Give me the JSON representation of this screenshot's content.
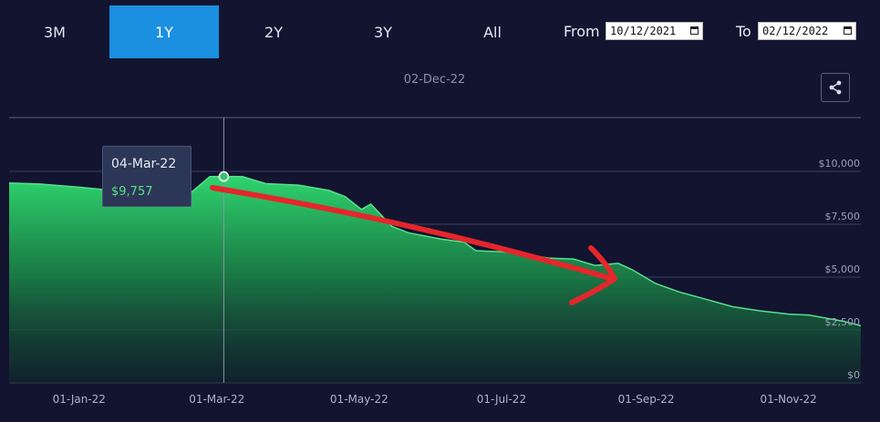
{
  "tabs": [
    {
      "label": "3M",
      "active": false
    },
    {
      "label": "1Y",
      "active": true
    },
    {
      "label": "2Y",
      "active": false
    },
    {
      "label": "3Y",
      "active": false
    },
    {
      "label": "All",
      "active": false
    }
  ],
  "date_range": {
    "from_label": "From",
    "from_value": "10/12/2021",
    "to_label": "To",
    "to_value": "02/12/2022"
  },
  "share_icon": "share-icon",
  "colors": {
    "background": "#121430",
    "accent": "#1b8fe0",
    "line": "#57e08c",
    "annotation_arrow": "#e5262b"
  },
  "chart_data": {
    "type": "area",
    "title": "02-Dec-22",
    "xlabel": "",
    "ylabel": "",
    "x_ticks": [
      "01-Jan-22",
      "01-Mar-22",
      "01-May-22",
      "01-Jul-22",
      "01-Sep-22",
      "01-Nov-22"
    ],
    "y_ticks": [
      "$0",
      "$2,500",
      "$5,000",
      "$7,500",
      "$10,000"
    ],
    "ylim": [
      0,
      10500
    ],
    "y_axis_position": "right",
    "grid": true,
    "x": [
      "2021-12-02",
      "2021-12-15",
      "2022-01-01",
      "2022-01-15",
      "2022-01-28",
      "2022-02-08",
      "2022-02-18",
      "2022-02-26",
      "2022-03-04",
      "2022-03-12",
      "2022-03-22",
      "2022-04-05",
      "2022-04-18",
      "2022-04-25",
      "2022-05-02",
      "2022-05-06",
      "2022-05-15",
      "2022-05-22",
      "2022-06-05",
      "2022-06-15",
      "2022-06-20",
      "2022-07-01",
      "2022-07-10",
      "2022-07-21",
      "2022-08-01",
      "2022-08-10",
      "2022-08-20",
      "2022-08-26",
      "2022-09-05",
      "2022-09-15",
      "2022-09-25",
      "2022-10-08",
      "2022-10-20",
      "2022-11-01",
      "2022-11-10",
      "2022-11-25",
      "2022-12-02"
    ],
    "values": [
      9450,
      9400,
      9250,
      9100,
      9500,
      9480,
      9000,
      9750,
      9757,
      9750,
      9420,
      9350,
      9100,
      8800,
      8200,
      8450,
      7400,
      7100,
      6800,
      6650,
      6250,
      6200,
      6100,
      5900,
      5850,
      5550,
      5650,
      5350,
      4700,
      4300,
      4000,
      3600,
      3400,
      3250,
      3200,
      2900,
      2700
    ],
    "tooltip": {
      "date": "04-Mar-22",
      "value": "$9,757"
    },
    "crosshair_x": "2022-03-04",
    "annotation": "hand-drawn red arrow pointing downward along the trend"
  }
}
